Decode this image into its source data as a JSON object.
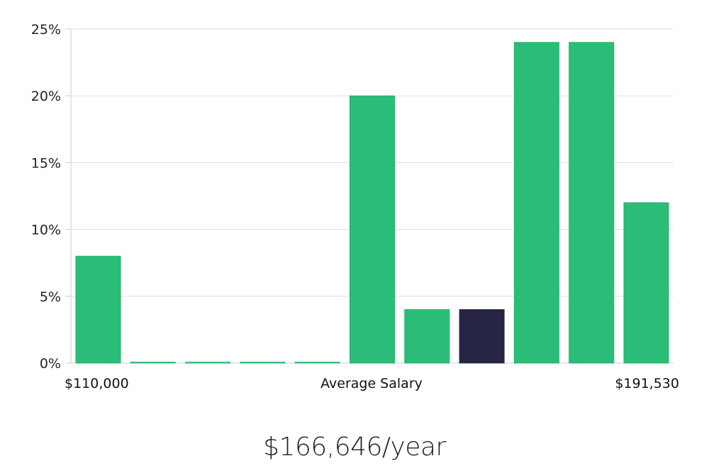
{
  "chart_data": {
    "type": "bar",
    "title": "",
    "xlabel": "",
    "ylabel": "",
    "ylim": [
      0,
      25
    ],
    "yticks": [
      "0%",
      "5%",
      "10%",
      "15%",
      "20%",
      "25%"
    ],
    "y_tick_values": [
      0,
      5,
      10,
      15,
      20,
      25
    ],
    "x_tick_labels": {
      "left": "$110,000",
      "center": "Average Salary",
      "right": "$191,530"
    },
    "grid": true,
    "legend": "none",
    "series": [
      {
        "values": [
          8,
          0,
          0,
          0,
          0,
          20,
          4,
          4,
          24,
          24,
          12
        ]
      }
    ],
    "highlight_index": 7,
    "colors": {
      "bar": "#2bbd77",
      "bar_stroke": "#22b06b",
      "highlight": "#272544"
    }
  },
  "caption": {
    "salary": "$166,646/year"
  }
}
